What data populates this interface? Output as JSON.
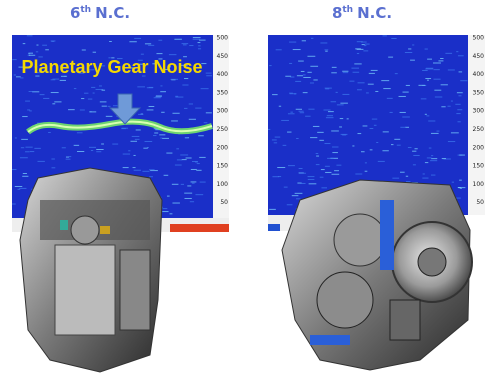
{
  "panels": [
    {
      "title": {
        "number": "6",
        "suffix": "th",
        "rest": "N.C."
      },
      "annotation": "Planetary Gear Noise",
      "yticks": [
        "500",
        "450",
        "400",
        "350",
        "300",
        "250",
        "200",
        "150",
        "100",
        "50"
      ]
    },
    {
      "title": {
        "number": "8",
        "suffix": "th",
        "rest": "N.C."
      },
      "yticks": [
        "500",
        "450",
        "400",
        "350",
        "300",
        "250",
        "200",
        "150",
        "100",
        "50"
      ]
    }
  ]
}
